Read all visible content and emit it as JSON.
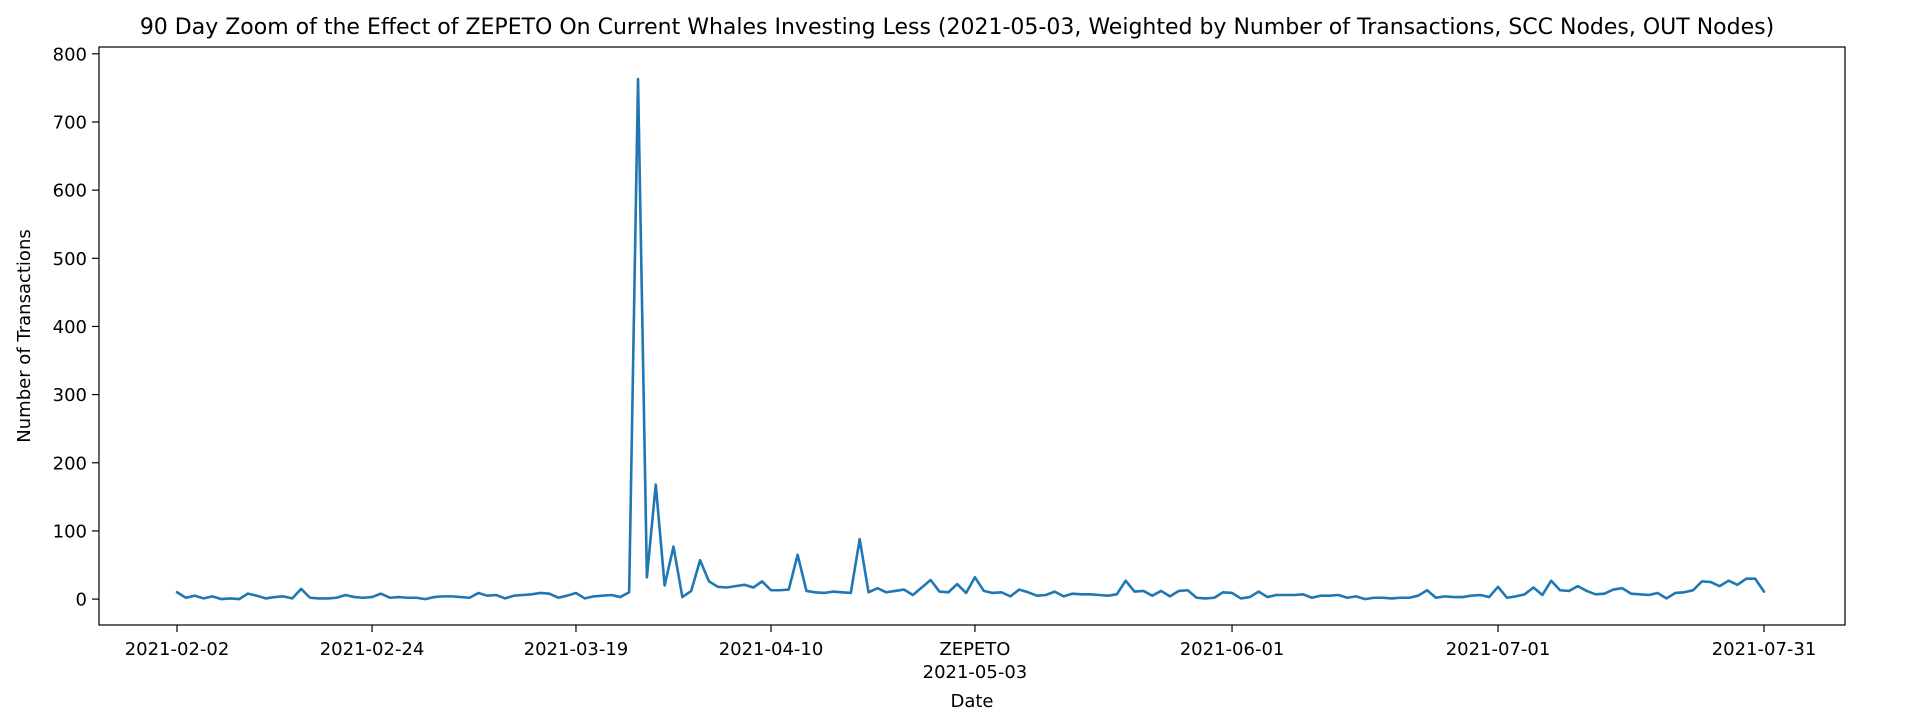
{
  "chart_data": {
    "type": "line",
    "title": "90 Day Zoom of the Effect of ZEPETO On Current Whales Investing Less (2021-05-03, Weighted by Number of Transactions, SCC Nodes, OUT Nodes)",
    "xlabel": "Date",
    "ylabel": "Number of Transactions",
    "ylim": [
      -38,
      810
    ],
    "yticks": [
      0,
      100,
      200,
      300,
      400,
      500,
      600,
      700,
      800
    ],
    "x_start": "2021-02-02",
    "xticks": [
      "2021-02-02",
      "2021-02-24",
      "2021-03-19",
      "2021-04-10",
      "2021-05-03",
      "2021-06-01",
      "2021-07-01",
      "2021-07-31"
    ],
    "event": {
      "date": "2021-05-03",
      "label": "ZEPETO"
    },
    "grid": false,
    "legend": "none",
    "line_color": "#1f77b4",
    "series": [
      {
        "dates": [
          "2021-02-02",
          "2021-02-03",
          "2021-02-04",
          "2021-02-05",
          "2021-02-06",
          "2021-02-07",
          "2021-02-08",
          "2021-02-09",
          "2021-02-10",
          "2021-02-11",
          "2021-02-12",
          "2021-02-13",
          "2021-02-14",
          "2021-02-15",
          "2021-02-16",
          "2021-02-17",
          "2021-02-18",
          "2021-02-19",
          "2021-02-20",
          "2021-02-21",
          "2021-02-22",
          "2021-02-23",
          "2021-02-24",
          "2021-02-25",
          "2021-02-26",
          "2021-02-27",
          "2021-02-28",
          "2021-03-01",
          "2021-03-02",
          "2021-03-03",
          "2021-03-04",
          "2021-03-05",
          "2021-03-06",
          "2021-03-07",
          "2021-03-08",
          "2021-03-09",
          "2021-03-10",
          "2021-03-11",
          "2021-03-12",
          "2021-03-13",
          "2021-03-14",
          "2021-03-15",
          "2021-03-16",
          "2021-03-17",
          "2021-03-18",
          "2021-03-19",
          "2021-03-20",
          "2021-03-21",
          "2021-03-22",
          "2021-03-23",
          "2021-03-24",
          "2021-03-25",
          "2021-03-26",
          "2021-03-27",
          "2021-03-28",
          "2021-03-29",
          "2021-03-30",
          "2021-03-31",
          "2021-04-01",
          "2021-04-02",
          "2021-04-03",
          "2021-04-04",
          "2021-04-05",
          "2021-04-06",
          "2021-04-07",
          "2021-04-08",
          "2021-04-09",
          "2021-04-10",
          "2021-04-11",
          "2021-04-12",
          "2021-04-13",
          "2021-04-14",
          "2021-04-15",
          "2021-04-16",
          "2021-04-17",
          "2021-04-18",
          "2021-04-19",
          "2021-04-20",
          "2021-04-21",
          "2021-04-22",
          "2021-04-23",
          "2021-04-24",
          "2021-04-25",
          "2021-04-26",
          "2021-04-27",
          "2021-04-28",
          "2021-04-29",
          "2021-04-30",
          "2021-05-01",
          "2021-05-02",
          "2021-05-03",
          "2021-05-04",
          "2021-05-05",
          "2021-05-06",
          "2021-05-07",
          "2021-05-08",
          "2021-05-09",
          "2021-05-10",
          "2021-05-11",
          "2021-05-12",
          "2021-05-13",
          "2021-05-14",
          "2021-05-15",
          "2021-05-16",
          "2021-05-17",
          "2021-05-18",
          "2021-05-19",
          "2021-05-20",
          "2021-05-21",
          "2021-05-22",
          "2021-05-23",
          "2021-05-24",
          "2021-05-25",
          "2021-05-26",
          "2021-05-27",
          "2021-05-28",
          "2021-05-29",
          "2021-05-30",
          "2021-05-31",
          "2021-06-01",
          "2021-06-02",
          "2021-06-03",
          "2021-06-04",
          "2021-06-05",
          "2021-06-06",
          "2021-06-07",
          "2021-06-08",
          "2021-06-09",
          "2021-06-10",
          "2021-06-11",
          "2021-06-12",
          "2021-06-13",
          "2021-06-14",
          "2021-06-15",
          "2021-06-16",
          "2021-06-17",
          "2021-06-18",
          "2021-06-19",
          "2021-06-20",
          "2021-06-21",
          "2021-06-22",
          "2021-06-23",
          "2021-06-24",
          "2021-06-25",
          "2021-06-26",
          "2021-06-27",
          "2021-06-28",
          "2021-06-29",
          "2021-06-30",
          "2021-07-01",
          "2021-07-02",
          "2021-07-03",
          "2021-07-04",
          "2021-07-05",
          "2021-07-06",
          "2021-07-07",
          "2021-07-08",
          "2021-07-09",
          "2021-07-10",
          "2021-07-11",
          "2021-07-12",
          "2021-07-13",
          "2021-07-14",
          "2021-07-15",
          "2021-07-16",
          "2021-07-17",
          "2021-07-18",
          "2021-07-19",
          "2021-07-20",
          "2021-07-21",
          "2021-07-22",
          "2021-07-23",
          "2021-07-24",
          "2021-07-25",
          "2021-07-26",
          "2021-07-27",
          "2021-07-28",
          "2021-07-29",
          "2021-07-30",
          "2021-07-31"
        ],
        "values": [
          10,
          2,
          5,
          1,
          4,
          0,
          1,
          0,
          8,
          5,
          1,
          3,
          4,
          1,
          15,
          2,
          1,
          1,
          2,
          6,
          3,
          2,
          3,
          8,
          2,
          3,
          2,
          2,
          0,
          3,
          4,
          4,
          3,
          2,
          9,
          5,
          6,
          1,
          5,
          6,
          7,
          9,
          8,
          2,
          5,
          9,
          1,
          4,
          5,
          6,
          3,
          10,
          763,
          32,
          168,
          20,
          77,
          3,
          12,
          57,
          26,
          18,
          17,
          19,
          21,
          17,
          26,
          13,
          13,
          14,
          65,
          12,
          10,
          9,
          11,
          10,
          9,
          88,
          10,
          16,
          10,
          12,
          14,
          6,
          17,
          28,
          11,
          10,
          22,
          9,
          32,
          12,
          9,
          10,
          4,
          14,
          10,
          5,
          6,
          11,
          4,
          8,
          7,
          7,
          6,
          5,
          7,
          27,
          11,
          12,
          5,
          12,
          4,
          12,
          13,
          2,
          1,
          2,
          10,
          9,
          1,
          3,
          11,
          3,
          6,
          6,
          6,
          7,
          2,
          5,
          5,
          6,
          2,
          4,
          0,
          2,
          2,
          1,
          2,
          2,
          5,
          13,
          2,
          4,
          3,
          3,
          5,
          6,
          3,
          18,
          2,
          4,
          7,
          17,
          6,
          27,
          13,
          12,
          19,
          12,
          7,
          8,
          14,
          16,
          8,
          7,
          6,
          9,
          1,
          9,
          10,
          13,
          26,
          25,
          19,
          27,
          21,
          30,
          30,
          11
        ]
      }
    ]
  }
}
